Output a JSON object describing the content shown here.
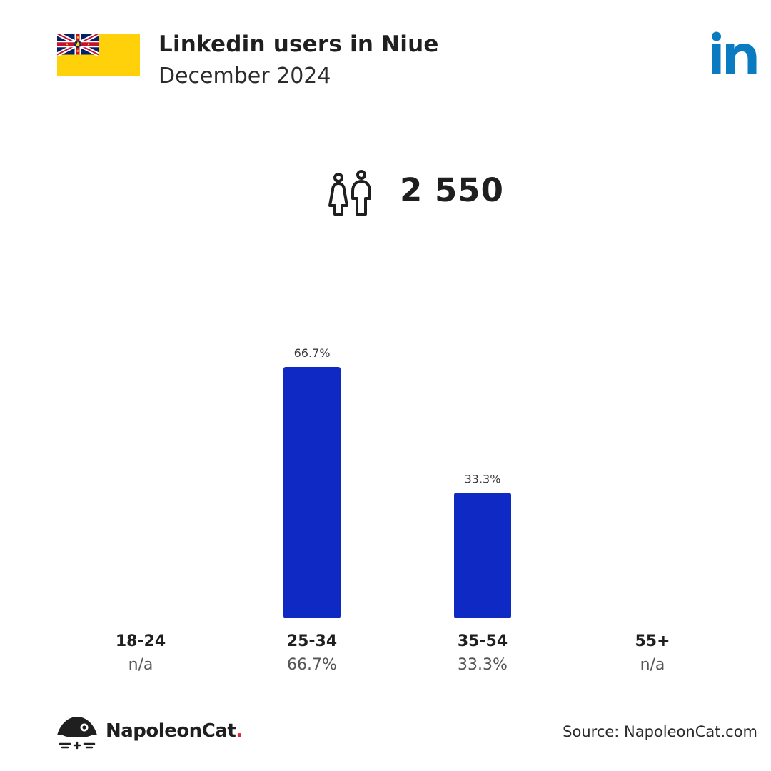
{
  "header": {
    "title": "Linkedin users in Niue",
    "subtitle": "December 2024"
  },
  "total_users": "2 550",
  "colors": {
    "bar": "#0f2ac4",
    "linkedin": "#0a7bc1",
    "flag_yellow": "#fed10a",
    "text": "#1f1f1f"
  },
  "icons": [
    "niue-flag-icon",
    "linkedin-logo-icon",
    "people-icon",
    "napoleoncat-logo-icon"
  ],
  "chart_data": {
    "type": "bar",
    "categories": [
      "18-24",
      "25-34",
      "35-54",
      "55+"
    ],
    "values": [
      null,
      66.7,
      33.3,
      null
    ],
    "value_labels": [
      "",
      "66.7%",
      "33.3%",
      ""
    ],
    "sublabels": [
      "n/a",
      "66.7%",
      "33.3%",
      "n/a"
    ],
    "ylim": [
      0,
      66.7
    ],
    "grid": false
  },
  "footer": {
    "brand": "NapoleonCat",
    "brand_dot": ".",
    "source": "Source: NapoleonCat.com"
  }
}
